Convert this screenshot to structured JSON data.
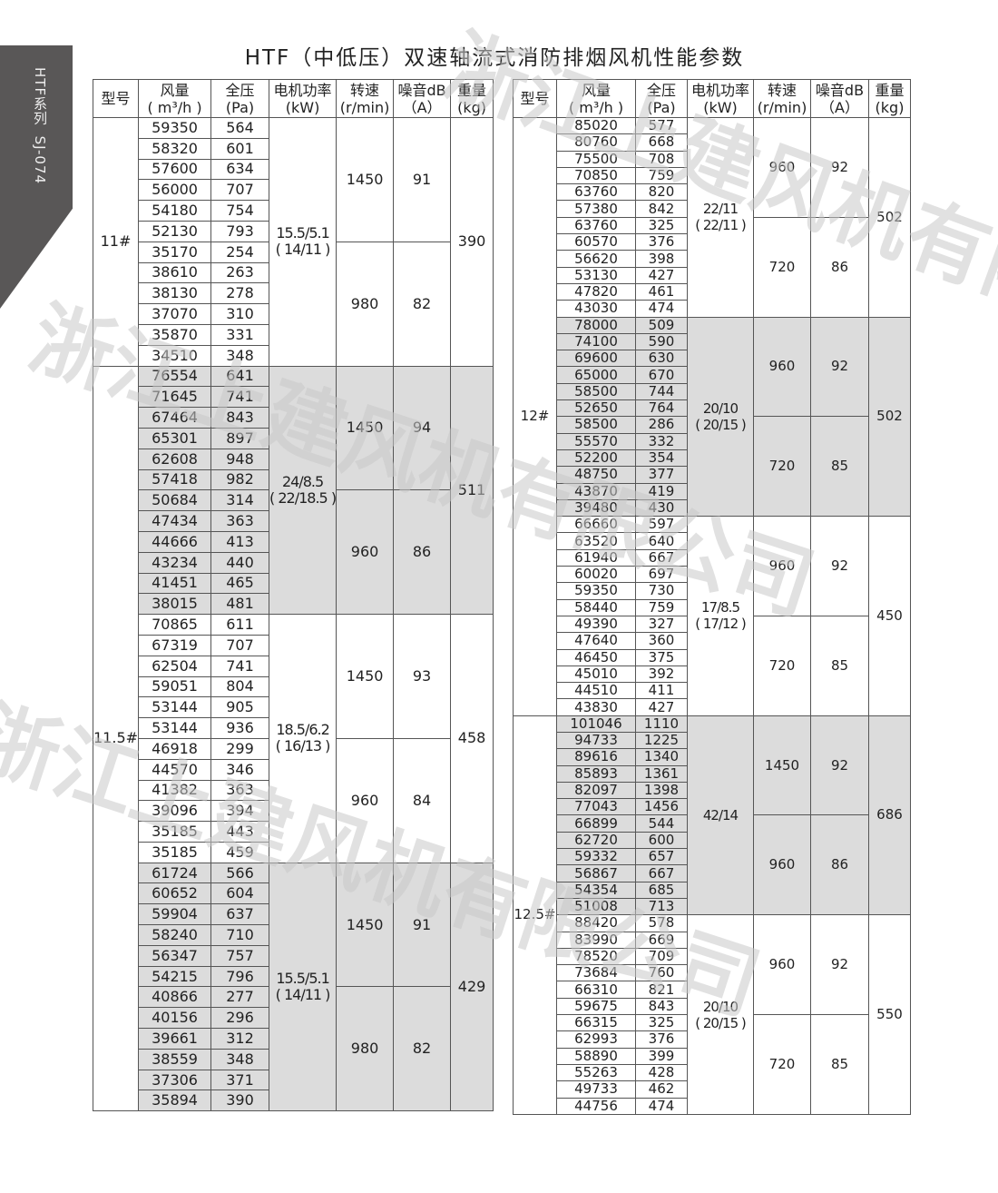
{
  "side_tab": {
    "text": "HTF系列  SJ-074"
  },
  "title": "HTF（中低压）双速轴流式消防排烟风机性能参数",
  "watermark": "浙江上建风机有限公司",
  "headers": [
    {
      "l1": "型号",
      "l2": ""
    },
    {
      "l1": "风量",
      "l2": "( m³/h )"
    },
    {
      "l1": "全压",
      "l2": "(Pa)"
    },
    {
      "l1": "电机功率",
      "l2": "(kW)"
    },
    {
      "l1": "转速",
      "l2": "(r/min)"
    },
    {
      "l1": "噪音dB",
      "l2": "（A）"
    },
    {
      "l1": "重量",
      "l2": "(kg)"
    }
  ],
  "tables": [
    {
      "id": "left",
      "models": [
        {
          "model": "11#",
          "groups": [
            {
              "power": "15.5/5.1",
              "power_alt": "( 14/11 )",
              "weight": "390",
              "shaded": false,
              "speeds": [
                {
                  "rpm": "1450",
                  "noise": "91",
                  "rows": [
                    [
                      "59350",
                      "564"
                    ],
                    [
                      "58320",
                      "601"
                    ],
                    [
                      "57600",
                      "634"
                    ],
                    [
                      "56000",
                      "707"
                    ],
                    [
                      "54180",
                      "754"
                    ],
                    [
                      "52130",
                      "793"
                    ]
                  ]
                },
                {
                  "rpm": "980",
                  "noise": "82",
                  "rows": [
                    [
                      "35170",
                      "254"
                    ],
                    [
                      "38610",
                      "263"
                    ],
                    [
                      "38130",
                      "278"
                    ],
                    [
                      "37070",
                      "310"
                    ],
                    [
                      "35870",
                      "331"
                    ],
                    [
                      "34510",
                      "348"
                    ]
                  ]
                }
              ]
            }
          ]
        },
        {
          "model": "11.5#",
          "groups": [
            {
              "power": "24/8.5",
              "power_alt": "( 22/18.5 )",
              "weight": "511",
              "shaded": true,
              "speeds": [
                {
                  "rpm": "1450",
                  "noise": "94",
                  "rows": [
                    [
                      "76554",
                      "641"
                    ],
                    [
                      "71645",
                      "741"
                    ],
                    [
                      "67464",
                      "843"
                    ],
                    [
                      "65301",
                      "897"
                    ],
                    [
                      "62608",
                      "948"
                    ],
                    [
                      "57418",
                      "982"
                    ]
                  ]
                },
                {
                  "rpm": "960",
                  "noise": "86",
                  "rows": [
                    [
                      "50684",
                      "314"
                    ],
                    [
                      "47434",
                      "363"
                    ],
                    [
                      "44666",
                      "413"
                    ],
                    [
                      "43234",
                      "440"
                    ],
                    [
                      "41451",
                      "465"
                    ],
                    [
                      "38015",
                      "481"
                    ]
                  ]
                }
              ]
            },
            {
              "power": "18.5/6.2",
              "power_alt": "( 16/13 )",
              "weight": "458",
              "shaded": false,
              "speeds": [
                {
                  "rpm": "1450",
                  "noise": "93",
                  "rows": [
                    [
                      "70865",
                      "611"
                    ],
                    [
                      "67319",
                      "707"
                    ],
                    [
                      "62504",
                      "741"
                    ],
                    [
                      "59051",
                      "804"
                    ],
                    [
                      "53144",
                      "905"
                    ],
                    [
                      "53144",
                      "936"
                    ]
                  ]
                },
                {
                  "rpm": "960",
                  "noise": "84",
                  "rows": [
                    [
                      "46918",
                      "299"
                    ],
                    [
                      "44570",
                      "346"
                    ],
                    [
                      "41382",
                      "363"
                    ],
                    [
                      "39096",
                      "394"
                    ],
                    [
                      "35185",
                      "443"
                    ],
                    [
                      "35185",
                      "459"
                    ]
                  ]
                }
              ]
            },
            {
              "power": "15.5/5.1",
              "power_alt": "( 14/11 )",
              "weight": "429",
              "shaded": true,
              "speeds": [
                {
                  "rpm": "1450",
                  "noise": "91",
                  "rows": [
                    [
                      "61724",
                      "566"
                    ],
                    [
                      "60652",
                      "604"
                    ],
                    [
                      "59904",
                      "637"
                    ],
                    [
                      "58240",
                      "710"
                    ],
                    [
                      "56347",
                      "757"
                    ],
                    [
                      "54215",
                      "796"
                    ]
                  ]
                },
                {
                  "rpm": "980",
                  "noise": "82",
                  "rows": [
                    [
                      "40866",
                      "277"
                    ],
                    [
                      "40156",
                      "296"
                    ],
                    [
                      "39661",
                      "312"
                    ],
                    [
                      "38559",
                      "348"
                    ],
                    [
                      "37306",
                      "371"
                    ],
                    [
                      "35894",
                      "390"
                    ]
                  ]
                }
              ]
            }
          ]
        }
      ]
    },
    {
      "id": "right",
      "models": [
        {
          "model": "12#",
          "groups": [
            {
              "power": "22/11",
              "power_alt": "( 22/11 )",
              "weight": "502",
              "shaded": false,
              "speeds": [
                {
                  "rpm": "960",
                  "noise": "92",
                  "rows": [
                    [
                      "85020",
                      "577"
                    ],
                    [
                      "80760",
                      "668"
                    ],
                    [
                      "75500",
                      "708"
                    ],
                    [
                      "70850",
                      "759"
                    ],
                    [
                      "63760",
                      "820"
                    ],
                    [
                      "57380",
                      "842"
                    ]
                  ]
                },
                {
                  "rpm": "720",
                  "noise": "86",
                  "rows": [
                    [
                      "63760",
                      "325"
                    ],
                    [
                      "60570",
                      "376"
                    ],
                    [
                      "56620",
                      "398"
                    ],
                    [
                      "53130",
                      "427"
                    ],
                    [
                      "47820",
                      "461"
                    ],
                    [
                      "43030",
                      "474"
                    ]
                  ]
                }
              ]
            },
            {
              "power": "20/10",
              "power_alt": "( 20/15 )",
              "weight": "502",
              "shaded": true,
              "speeds": [
                {
                  "rpm": "960",
                  "noise": "92",
                  "rows": [
                    [
                      "78000",
                      "509"
                    ],
                    [
                      "74100",
                      "590"
                    ],
                    [
                      "69600",
                      "630"
                    ],
                    [
                      "65000",
                      "670"
                    ],
                    [
                      "58500",
                      "744"
                    ],
                    [
                      "52650",
                      "764"
                    ]
                  ]
                },
                {
                  "rpm": "720",
                  "noise": "85",
                  "rows": [
                    [
                      "58500",
                      "286"
                    ],
                    [
                      "55570",
                      "332"
                    ],
                    [
                      "52200",
                      "354"
                    ],
                    [
                      "48750",
                      "377"
                    ],
                    [
                      "43870",
                      "419"
                    ],
                    [
                      "39480",
                      "430"
                    ]
                  ]
                }
              ]
            },
            {
              "power": "17/8.5",
              "power_alt": "( 17/12 )",
              "weight": "450",
              "shaded": false,
              "speeds": [
                {
                  "rpm": "960",
                  "noise": "92",
                  "rows": [
                    [
                      "66660",
                      "597"
                    ],
                    [
                      "63520",
                      "640"
                    ],
                    [
                      "61940",
                      "667"
                    ],
                    [
                      "60020",
                      "697"
                    ],
                    [
                      "59350",
                      "730"
                    ],
                    [
                      "58440",
                      "759"
                    ]
                  ]
                },
                {
                  "rpm": "720",
                  "noise": "85",
                  "rows": [
                    [
                      "49390",
                      "327"
                    ],
                    [
                      "47640",
                      "360"
                    ],
                    [
                      "46450",
                      "375"
                    ],
                    [
                      "45010",
                      "392"
                    ],
                    [
                      "44510",
                      "411"
                    ],
                    [
                      "43830",
                      "427"
                    ]
                  ]
                }
              ]
            }
          ]
        },
        {
          "model": "12.5#",
          "groups": [
            {
              "power": "42/14",
              "power_alt": "",
              "weight": "686",
              "shaded": true,
              "speeds": [
                {
                  "rpm": "1450",
                  "noise": "92",
                  "rows": [
                    [
                      "101046",
                      "1110"
                    ],
                    [
                      "94733",
                      "1225"
                    ],
                    [
                      "89616",
                      "1340"
                    ],
                    [
                      "85893",
                      "1361"
                    ],
                    [
                      "82097",
                      "1398"
                    ],
                    [
                      "77043",
                      "1456"
                    ]
                  ]
                },
                {
                  "rpm": "960",
                  "noise": "86",
                  "rows": [
                    [
                      "66899",
                      "544"
                    ],
                    [
                      "62720",
                      "600"
                    ],
                    [
                      "59332",
                      "657"
                    ],
                    [
                      "56867",
                      "667"
                    ],
                    [
                      "54354",
                      "685"
                    ],
                    [
                      "51008",
                      "713"
                    ]
                  ]
                }
              ]
            },
            {
              "power": "20/10",
              "power_alt": "( 20/15 )",
              "weight": "550",
              "shaded": false,
              "speeds": [
                {
                  "rpm": "960",
                  "noise": "92",
                  "rows": [
                    [
                      "88420",
                      "578"
                    ],
                    [
                      "83990",
                      "669"
                    ],
                    [
                      "78520",
                      "709"
                    ],
                    [
                      "73684",
                      "760"
                    ],
                    [
                      "66310",
                      "821"
                    ],
                    [
                      "59675",
                      "843"
                    ]
                  ]
                },
                {
                  "rpm": "720",
                  "noise": "85",
                  "rows": [
                    [
                      "66315",
                      "325"
                    ],
                    [
                      "62993",
                      "376"
                    ],
                    [
                      "58890",
                      "399"
                    ],
                    [
                      "55263",
                      "428"
                    ],
                    [
                      "49733",
                      "462"
                    ],
                    [
                      "44756",
                      "474"
                    ]
                  ]
                }
              ]
            }
          ]
        }
      ]
    }
  ]
}
